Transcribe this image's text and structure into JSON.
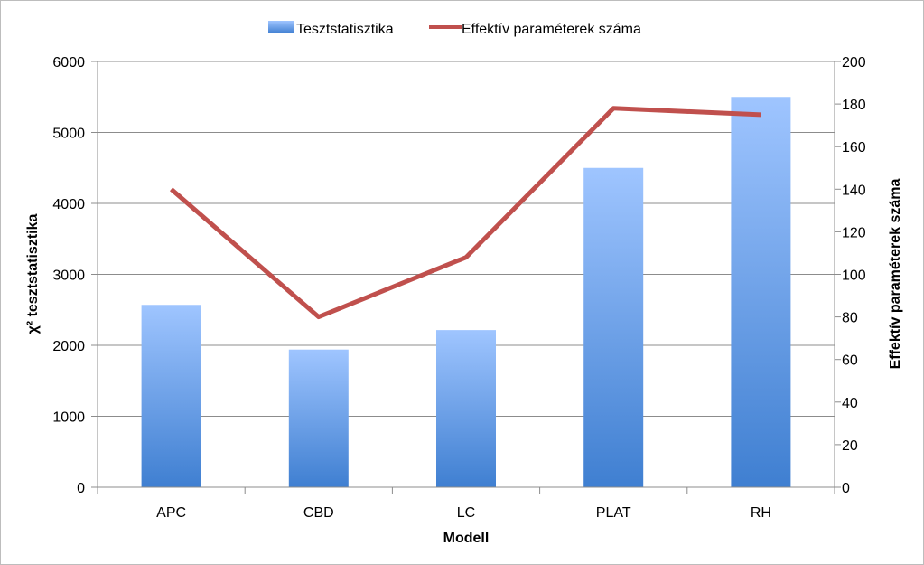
{
  "chart_data": {
    "type": "bar",
    "categories": [
      "APC",
      "CBD",
      "LC",
      "PLAT",
      "RH"
    ],
    "series": [
      {
        "name": "Tesztstatisztika",
        "type": "bar",
        "axis": "left",
        "values": [
          2570,
          1940,
          2215,
          4500,
          5500
        ],
        "color": "#5b8fde"
      },
      {
        "name": "Effektív paraméterek száma",
        "type": "line",
        "axis": "right",
        "values": [
          140,
          80,
          108,
          178,
          175
        ],
        "color": "#c0504d"
      }
    ],
    "xlabel": "Modell",
    "ylabel": "χ² tesztstatisztika",
    "y2label": "Effektív paraméterek száma",
    "ylim": [
      0,
      6000
    ],
    "y2lim": [
      0,
      200
    ],
    "yticks": [
      "0",
      "1000",
      "2000",
      "3000",
      "4000",
      "5000",
      "6000"
    ],
    "y2ticks": [
      "0",
      "20",
      "40",
      "60",
      "80",
      "100",
      "120",
      "140",
      "160",
      "180",
      "200"
    ],
    "grid": true,
    "legend_position": "top"
  }
}
